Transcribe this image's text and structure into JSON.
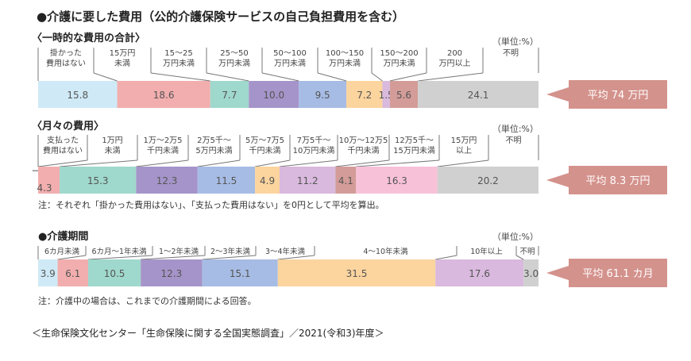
{
  "title": "●介護に要した費用（公的介護保険サービスの自己負担費用を含む）",
  "source": "＜生命保険文化センター「生命保険に関する全国実態調査」／2021(令和3)年度＞",
  "chart_data": [
    {
      "type": "bar",
      "orientation": "horizontal-stacked",
      "title": "〈一時的な費用の合計〉",
      "unit": "（単位:%）",
      "categories": [
        "掛かった\n費用はない",
        "15万円\n未満",
        "15～25\n万円未満",
        "25～50\n万円未満",
        "50～100\n万円未満",
        "100～150\n万円未満",
        "150～200\n万円未満",
        "200\n万円以上",
        "不明"
      ],
      "values": [
        15.8,
        18.6,
        7.7,
        10.0,
        9.5,
        7.2,
        1.5,
        5.6,
        24.1
      ],
      "colors": [
        "#cfeaf6",
        "#f2aeae",
        "#9fd8cc",
        "#a594c9",
        "#a6bce4",
        "#fbd49e",
        "#d9b9dd",
        "#d39c98",
        "#d0d0d0"
      ],
      "average": "平均 74 万円"
    },
    {
      "type": "bar",
      "orientation": "horizontal-stacked",
      "title": "〈月々の費用〉",
      "unit": "（単位:%）",
      "categories": [
        "支払った\n費用はない",
        "1万円\n未満",
        "1万～2万5\n千円未満",
        "2万5千～\n5万円未満",
        "5万～7万5\n千円未満",
        "7万5千～\n10万円未満",
        "10万～12万5\n千円未満",
        "12万5千～\n15万円未満",
        "15万円\n以上",
        "不明"
      ],
      "values": [
        0.0,
        4.3,
        15.3,
        12.3,
        11.5,
        4.9,
        11.2,
        4.1,
        16.3,
        20.2
      ],
      "colors": [
        "#cfeaf6",
        "#f2aeae",
        "#9fd8cc",
        "#a594c9",
        "#a6bce4",
        "#fbd49e",
        "#d9b9dd",
        "#d39c98",
        "#f7c1d8",
        "#d0d0d0"
      ],
      "average": "平均 8.3 万円",
      "note": "注：それぞれ「掛かった費用はない」、「支払った費用はない」を0円として平均を算出。"
    },
    {
      "type": "bar",
      "orientation": "horizontal-stacked",
      "title": "●介護期間",
      "unit": "（単位:%）",
      "categories": [
        "6カ月未満",
        "6カ月～1年未満",
        "1～2年未満",
        "2～3年未満",
        "3～4年未満",
        "4～10年未満",
        "10年以上",
        "不明"
      ],
      "values": [
        3.9,
        6.1,
        10.5,
        12.3,
        15.1,
        31.5,
        17.6,
        3.0
      ],
      "colors": [
        "#cfeaf6",
        "#f2aeae",
        "#9fd8cc",
        "#a594c9",
        "#a6bce4",
        "#fbd49e",
        "#d9b9dd",
        "#d0d0d0"
      ],
      "average": "平均 61.1 カ月",
      "note": "注：介護中の場合は、これまでの介護期間による回答。"
    }
  ],
  "callout_color": "#d4928c"
}
